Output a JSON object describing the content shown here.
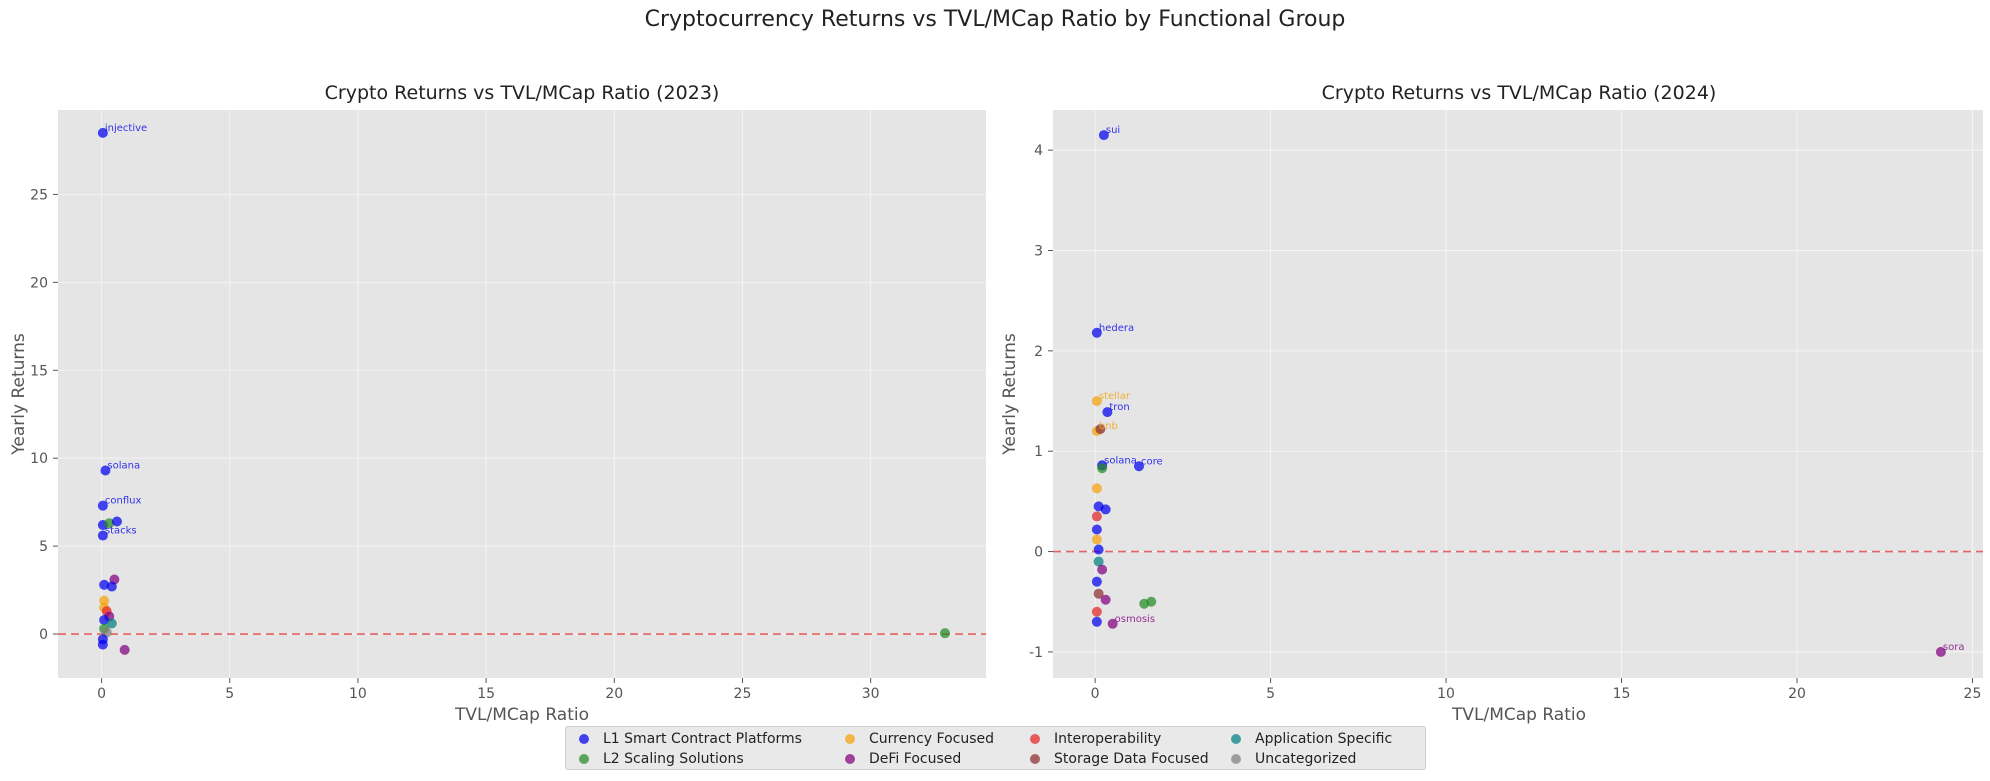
{
  "suptitle": "Cryptocurrency Returns vs TVL/MCap Ratio by Functional Group",
  "groups": [
    {
      "name": "L1 Smart Contract Platforms",
      "color": "#0000ee"
    },
    {
      "name": "L2 Scaling Solutions",
      "color": "#228b22"
    },
    {
      "name": "Currency Focused",
      "color": "#f5a20a"
    },
    {
      "name": "DeFi Focused",
      "color": "#800080"
    },
    {
      "name": "Interoperability",
      "color": "#e32626"
    },
    {
      "name": "Storage Data Focused",
      "color": "#8b2e2e"
    },
    {
      "name": "Application Specific",
      "color": "#008080"
    },
    {
      "name": "Uncategorized",
      "color": "#808080"
    }
  ],
  "chart_data": [
    {
      "type": "scatter",
      "title": "Crypto Returns vs TVL/MCap Ratio (2023)",
      "xlabel": "TVL/MCap Ratio",
      "ylabel": "Yearly Returns",
      "xlim": [
        -1.7,
        34.5
      ],
      "ylim": [
        -2.5,
        29.8
      ],
      "xticks": [
        0,
        5,
        10,
        15,
        20,
        25,
        30
      ],
      "yticks": [
        0,
        5,
        10,
        15,
        20,
        25
      ],
      "grid": true,
      "reference_line": 0,
      "points": [
        {
          "label": "injective",
          "x": 0.05,
          "y": 28.5,
          "group": 0
        },
        {
          "label": "solana",
          "x": 0.15,
          "y": 9.3,
          "group": 0
        },
        {
          "label": "conflux",
          "x": 0.05,
          "y": 7.3,
          "group": 0
        },
        {
          "label": "",
          "x": 0.05,
          "y": 6.2,
          "group": 0
        },
        {
          "label": "",
          "x": 0.3,
          "y": 6.3,
          "group": 1
        },
        {
          "label": "",
          "x": 0.6,
          "y": 6.4,
          "group": 0
        },
        {
          "label": "stacks",
          "x": 0.05,
          "y": 5.6,
          "group": 0
        },
        {
          "label": "",
          "x": 0.5,
          "y": 3.1,
          "group": 3
        },
        {
          "label": "",
          "x": 0.1,
          "y": 2.8,
          "group": 0
        },
        {
          "label": "",
          "x": 0.4,
          "y": 2.7,
          "group": 0
        },
        {
          "label": "",
          "x": 0.1,
          "y": 1.9,
          "group": 2
        },
        {
          "label": "",
          "x": 0.1,
          "y": 1.5,
          "group": 2
        },
        {
          "label": "",
          "x": 0.2,
          "y": 1.3,
          "group": 4
        },
        {
          "label": "",
          "x": 0.3,
          "y": 1.0,
          "group": 3
        },
        {
          "label": "",
          "x": 0.1,
          "y": 0.8,
          "group": 0
        },
        {
          "label": "",
          "x": 0.4,
          "y": 0.6,
          "group": 6
        },
        {
          "label": "",
          "x": 0.1,
          "y": 0.3,
          "group": 1
        },
        {
          "label": "",
          "x": 0.2,
          "y": 0.1,
          "group": 7
        },
        {
          "label": "",
          "x": 0.05,
          "y": -0.3,
          "group": 0
        },
        {
          "label": "",
          "x": 0.05,
          "y": -0.6,
          "group": 0
        },
        {
          "label": "",
          "x": 0.9,
          "y": -0.9,
          "group": 3
        },
        {
          "label": "",
          "x": 32.9,
          "y": 0.05,
          "group": 1
        }
      ]
    },
    {
      "type": "scatter",
      "title": "Crypto Returns vs TVL/MCap Ratio (2024)",
      "xlabel": "TVL/MCap Ratio",
      "ylabel": "Yearly Returns",
      "xlim": [
        -1.2,
        25.3
      ],
      "ylim": [
        -1.26,
        4.4
      ],
      "xticks": [
        0,
        5,
        10,
        15,
        20,
        25
      ],
      "yticks": [
        -1,
        0,
        1,
        2,
        3,
        4
      ],
      "grid": true,
      "reference_line": 0,
      "points": [
        {
          "label": "sui",
          "x": 0.25,
          "y": 4.15,
          "group": 0
        },
        {
          "label": "hedera",
          "x": 0.05,
          "y": 2.18,
          "group": 0
        },
        {
          "label": "stellar",
          "x": 0.05,
          "y": 1.5,
          "group": 2
        },
        {
          "label": "tron",
          "x": 0.35,
          "y": 1.39,
          "group": 0
        },
        {
          "label": "bnb",
          "x": 0.05,
          "y": 1.2,
          "group": 2
        },
        {
          "label": "",
          "x": 0.15,
          "y": 1.22,
          "group": 5
        },
        {
          "label": "solana",
          "x": 0.2,
          "y": 0.86,
          "group": 0
        },
        {
          "label": "",
          "x": 0.2,
          "y": 0.83,
          "group": 1
        },
        {
          "label": "core",
          "x": 1.25,
          "y": 0.85,
          "group": 0
        },
        {
          "label": "",
          "x": 0.05,
          "y": 0.63,
          "group": 2
        },
        {
          "label": "",
          "x": 0.1,
          "y": 0.45,
          "group": 0
        },
        {
          "label": "",
          "x": 0.3,
          "y": 0.42,
          "group": 0
        },
        {
          "label": "",
          "x": 0.05,
          "y": 0.35,
          "group": 4
        },
        {
          "label": "",
          "x": 0.05,
          "y": 0.22,
          "group": 0
        },
        {
          "label": "",
          "x": 0.05,
          "y": 0.12,
          "group": 2
        },
        {
          "label": "",
          "x": 0.1,
          "y": 0.02,
          "group": 0
        },
        {
          "label": "",
          "x": 0.1,
          "y": -0.1,
          "group": 6
        },
        {
          "label": "",
          "x": 0.2,
          "y": -0.18,
          "group": 3
        },
        {
          "label": "",
          "x": 0.05,
          "y": -0.3,
          "group": 0
        },
        {
          "label": "",
          "x": 0.1,
          "y": -0.42,
          "group": 5
        },
        {
          "label": "",
          "x": 0.3,
          "y": -0.48,
          "group": 3
        },
        {
          "label": "",
          "x": 1.4,
          "y": -0.52,
          "group": 1
        },
        {
          "label": "",
          "x": 1.6,
          "y": -0.5,
          "group": 1
        },
        {
          "label": "",
          "x": 0.05,
          "y": -0.6,
          "group": 4
        },
        {
          "label": "",
          "x": 0.05,
          "y": -0.7,
          "group": 0
        },
        {
          "label": "osmosis",
          "x": 0.5,
          "y": -0.72,
          "group": 3
        },
        {
          "label": "sora",
          "x": 24.1,
          "y": -1.0,
          "group": 3
        }
      ]
    }
  ]
}
